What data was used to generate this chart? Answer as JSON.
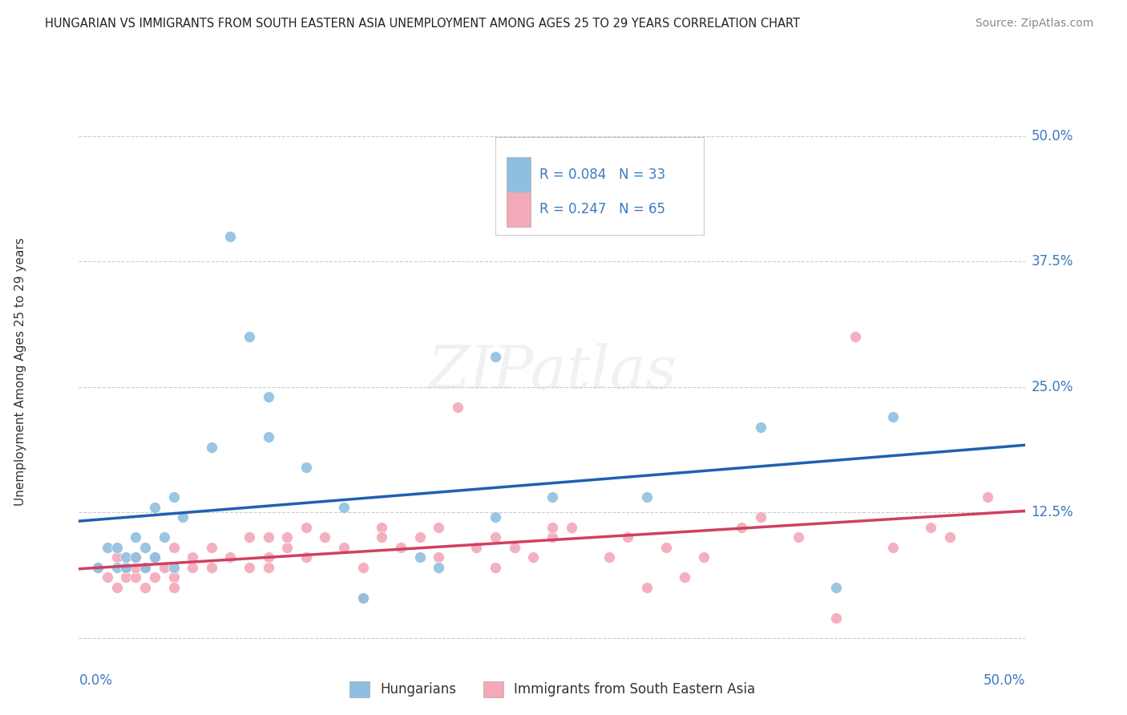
{
  "title": "HUNGARIAN VS IMMIGRANTS FROM SOUTH EASTERN ASIA UNEMPLOYMENT AMONG AGES 25 TO 29 YEARS CORRELATION CHART",
  "source": "Source: ZipAtlas.com",
  "ylabel": "Unemployment Among Ages 25 to 29 years",
  "xlim": [
    0.0,
    0.5
  ],
  "ylim": [
    -0.02,
    0.55
  ],
  "ytick_vals": [
    0.125,
    0.25,
    0.375,
    0.5
  ],
  "ytick_labels": [
    "12.5%",
    "25.0%",
    "37.5%",
    "50.0%"
  ],
  "grid_color": "#cccccc",
  "background_color": "#ffffff",
  "blue_color": "#8fbfe0",
  "pink_color": "#f4a8b8",
  "blue_line_color": "#2060b0",
  "pink_line_color": "#d04060",
  "axis_text_color": "#3a7abf",
  "label_color": "#333333",
  "legend_R1": "0.084",
  "legend_N1": "33",
  "legend_R2": "0.247",
  "legend_N2": "65",
  "blue_scatter_x": [
    0.01,
    0.015,
    0.02,
    0.02,
    0.025,
    0.025,
    0.03,
    0.03,
    0.035,
    0.035,
    0.04,
    0.04,
    0.045,
    0.05,
    0.05,
    0.055,
    0.07,
    0.08,
    0.09,
    0.1,
    0.1,
    0.12,
    0.14,
    0.15,
    0.18,
    0.19,
    0.22,
    0.22,
    0.25,
    0.3,
    0.36,
    0.4,
    0.43
  ],
  "blue_scatter_y": [
    0.07,
    0.09,
    0.07,
    0.09,
    0.07,
    0.08,
    0.08,
    0.1,
    0.07,
    0.09,
    0.08,
    0.13,
    0.1,
    0.07,
    0.14,
    0.12,
    0.19,
    0.4,
    0.3,
    0.24,
    0.2,
    0.17,
    0.13,
    0.04,
    0.08,
    0.07,
    0.12,
    0.28,
    0.14,
    0.14,
    0.21,
    0.05,
    0.22
  ],
  "pink_scatter_x": [
    0.01,
    0.015,
    0.02,
    0.02,
    0.025,
    0.025,
    0.03,
    0.03,
    0.03,
    0.035,
    0.035,
    0.04,
    0.04,
    0.045,
    0.05,
    0.05,
    0.05,
    0.06,
    0.06,
    0.07,
    0.07,
    0.08,
    0.09,
    0.09,
    0.1,
    0.1,
    0.1,
    0.11,
    0.11,
    0.12,
    0.12,
    0.13,
    0.14,
    0.15,
    0.15,
    0.16,
    0.16,
    0.17,
    0.18,
    0.19,
    0.19,
    0.2,
    0.21,
    0.22,
    0.22,
    0.23,
    0.24,
    0.25,
    0.25,
    0.26,
    0.28,
    0.29,
    0.3,
    0.31,
    0.32,
    0.33,
    0.35,
    0.36,
    0.38,
    0.4,
    0.41,
    0.43,
    0.45,
    0.46,
    0.48
  ],
  "pink_scatter_y": [
    0.07,
    0.06,
    0.05,
    0.08,
    0.06,
    0.07,
    0.06,
    0.07,
    0.08,
    0.05,
    0.07,
    0.06,
    0.08,
    0.07,
    0.06,
    0.05,
    0.09,
    0.07,
    0.08,
    0.07,
    0.09,
    0.08,
    0.07,
    0.1,
    0.08,
    0.07,
    0.1,
    0.09,
    0.1,
    0.08,
    0.11,
    0.1,
    0.09,
    0.04,
    0.07,
    0.11,
    0.1,
    0.09,
    0.1,
    0.08,
    0.11,
    0.23,
    0.09,
    0.07,
    0.1,
    0.09,
    0.08,
    0.1,
    0.11,
    0.11,
    0.08,
    0.1,
    0.05,
    0.09,
    0.06,
    0.08,
    0.11,
    0.12,
    0.1,
    0.02,
    0.3,
    0.09,
    0.11,
    0.1,
    0.14
  ]
}
